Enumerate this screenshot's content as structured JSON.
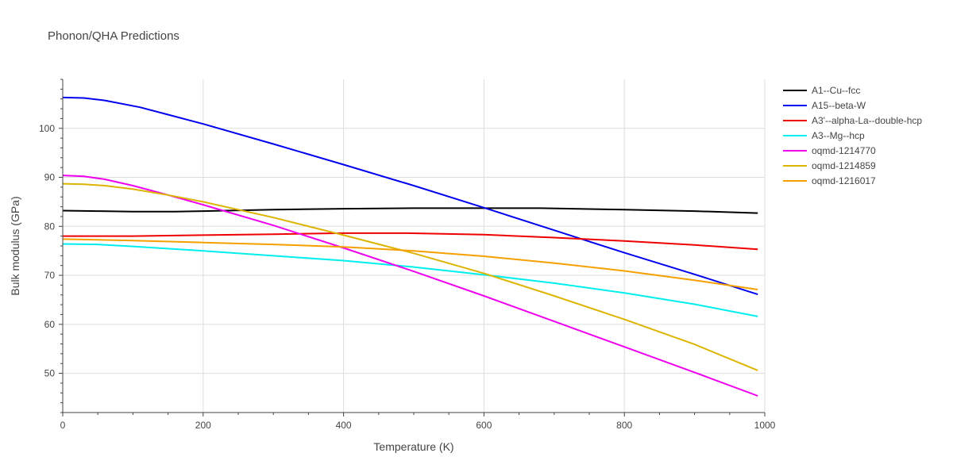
{
  "chart_data": {
    "type": "line",
    "title": "Phonon/QHA Predictions",
    "xlabel": "Temperature (K)",
    "ylabel": "Bulk modulus (GPa)",
    "xlim": [
      0,
      1000
    ],
    "ylim": [
      42,
      110
    ],
    "x_ticks": [
      0,
      200,
      400,
      600,
      800,
      1000
    ],
    "y_ticks": [
      50,
      60,
      70,
      80,
      90,
      100
    ],
    "grid": true,
    "legend_position": "top-right",
    "series": [
      {
        "name": "A1--Cu--fcc",
        "color": "#000000",
        "x": [
          0,
          50,
          100,
          160,
          200,
          300,
          400,
          500,
          600,
          680,
          800,
          900,
          990
        ],
        "y": [
          83.2,
          83.1,
          83.0,
          83.0,
          83.1,
          83.4,
          83.6,
          83.7,
          83.7,
          83.7,
          83.4,
          83.1,
          82.7
        ]
      },
      {
        "name": "A15--beta-W",
        "color": "#0000ee",
        "x": [
          0,
          30,
          60,
          110,
          150,
          200,
          300,
          400,
          500,
          600,
          700,
          800,
          900,
          990
        ],
        "y": [
          106.3,
          106.2,
          105.7,
          104.3,
          102.8,
          100.9,
          96.8,
          92.6,
          88.3,
          83.8,
          79.2,
          74.6,
          70.2,
          66.1
        ]
      },
      {
        "name": "A3'--alpha-La--double-hcp",
        "color": "#ee0000",
        "x": [
          0,
          100,
          200,
          300,
          400,
          490,
          600,
          700,
          800,
          900,
          990
        ],
        "y": [
          78.0,
          78.0,
          78.2,
          78.4,
          78.6,
          78.6,
          78.3,
          77.7,
          77.0,
          76.2,
          75.3
        ]
      },
      {
        "name": "A3--Mg--hcp",
        "color": "#00eeee",
        "x": [
          0,
          50,
          100,
          200,
          300,
          400,
          500,
          600,
          700,
          800,
          900,
          990
        ],
        "y": [
          76.4,
          76.3,
          75.9,
          75.0,
          74.0,
          73.0,
          71.7,
          70.1,
          68.4,
          66.4,
          64.1,
          61.6
        ]
      },
      {
        "name": "oqmd-1214770",
        "color": "#ee00ee",
        "x": [
          0,
          30,
          60,
          100,
          150,
          200,
          300,
          400,
          500,
          600,
          700,
          800,
          900,
          990
        ],
        "y": [
          90.4,
          90.2,
          89.6,
          88.3,
          86.4,
          84.4,
          80.2,
          75.6,
          70.8,
          65.8,
          60.6,
          55.4,
          50.2,
          45.4
        ]
      },
      {
        "name": "oqmd-1214859",
        "color": "#ddb400",
        "x": [
          0,
          30,
          60,
          100,
          150,
          200,
          300,
          400,
          500,
          600,
          700,
          800,
          900,
          990
        ],
        "y": [
          88.7,
          88.6,
          88.3,
          87.6,
          86.4,
          85.0,
          81.8,
          78.2,
          74.5,
          70.4,
          65.8,
          61.0,
          55.9,
          50.6
        ]
      },
      {
        "name": "oqmd-1216017",
        "color": "#f5a000",
        "x": [
          0,
          100,
          200,
          300,
          400,
          500,
          600,
          700,
          800,
          900,
          990
        ],
        "y": [
          77.4,
          77.1,
          76.7,
          76.3,
          75.8,
          75.0,
          73.9,
          72.5,
          70.9,
          69.0,
          67.1
        ]
      }
    ]
  }
}
